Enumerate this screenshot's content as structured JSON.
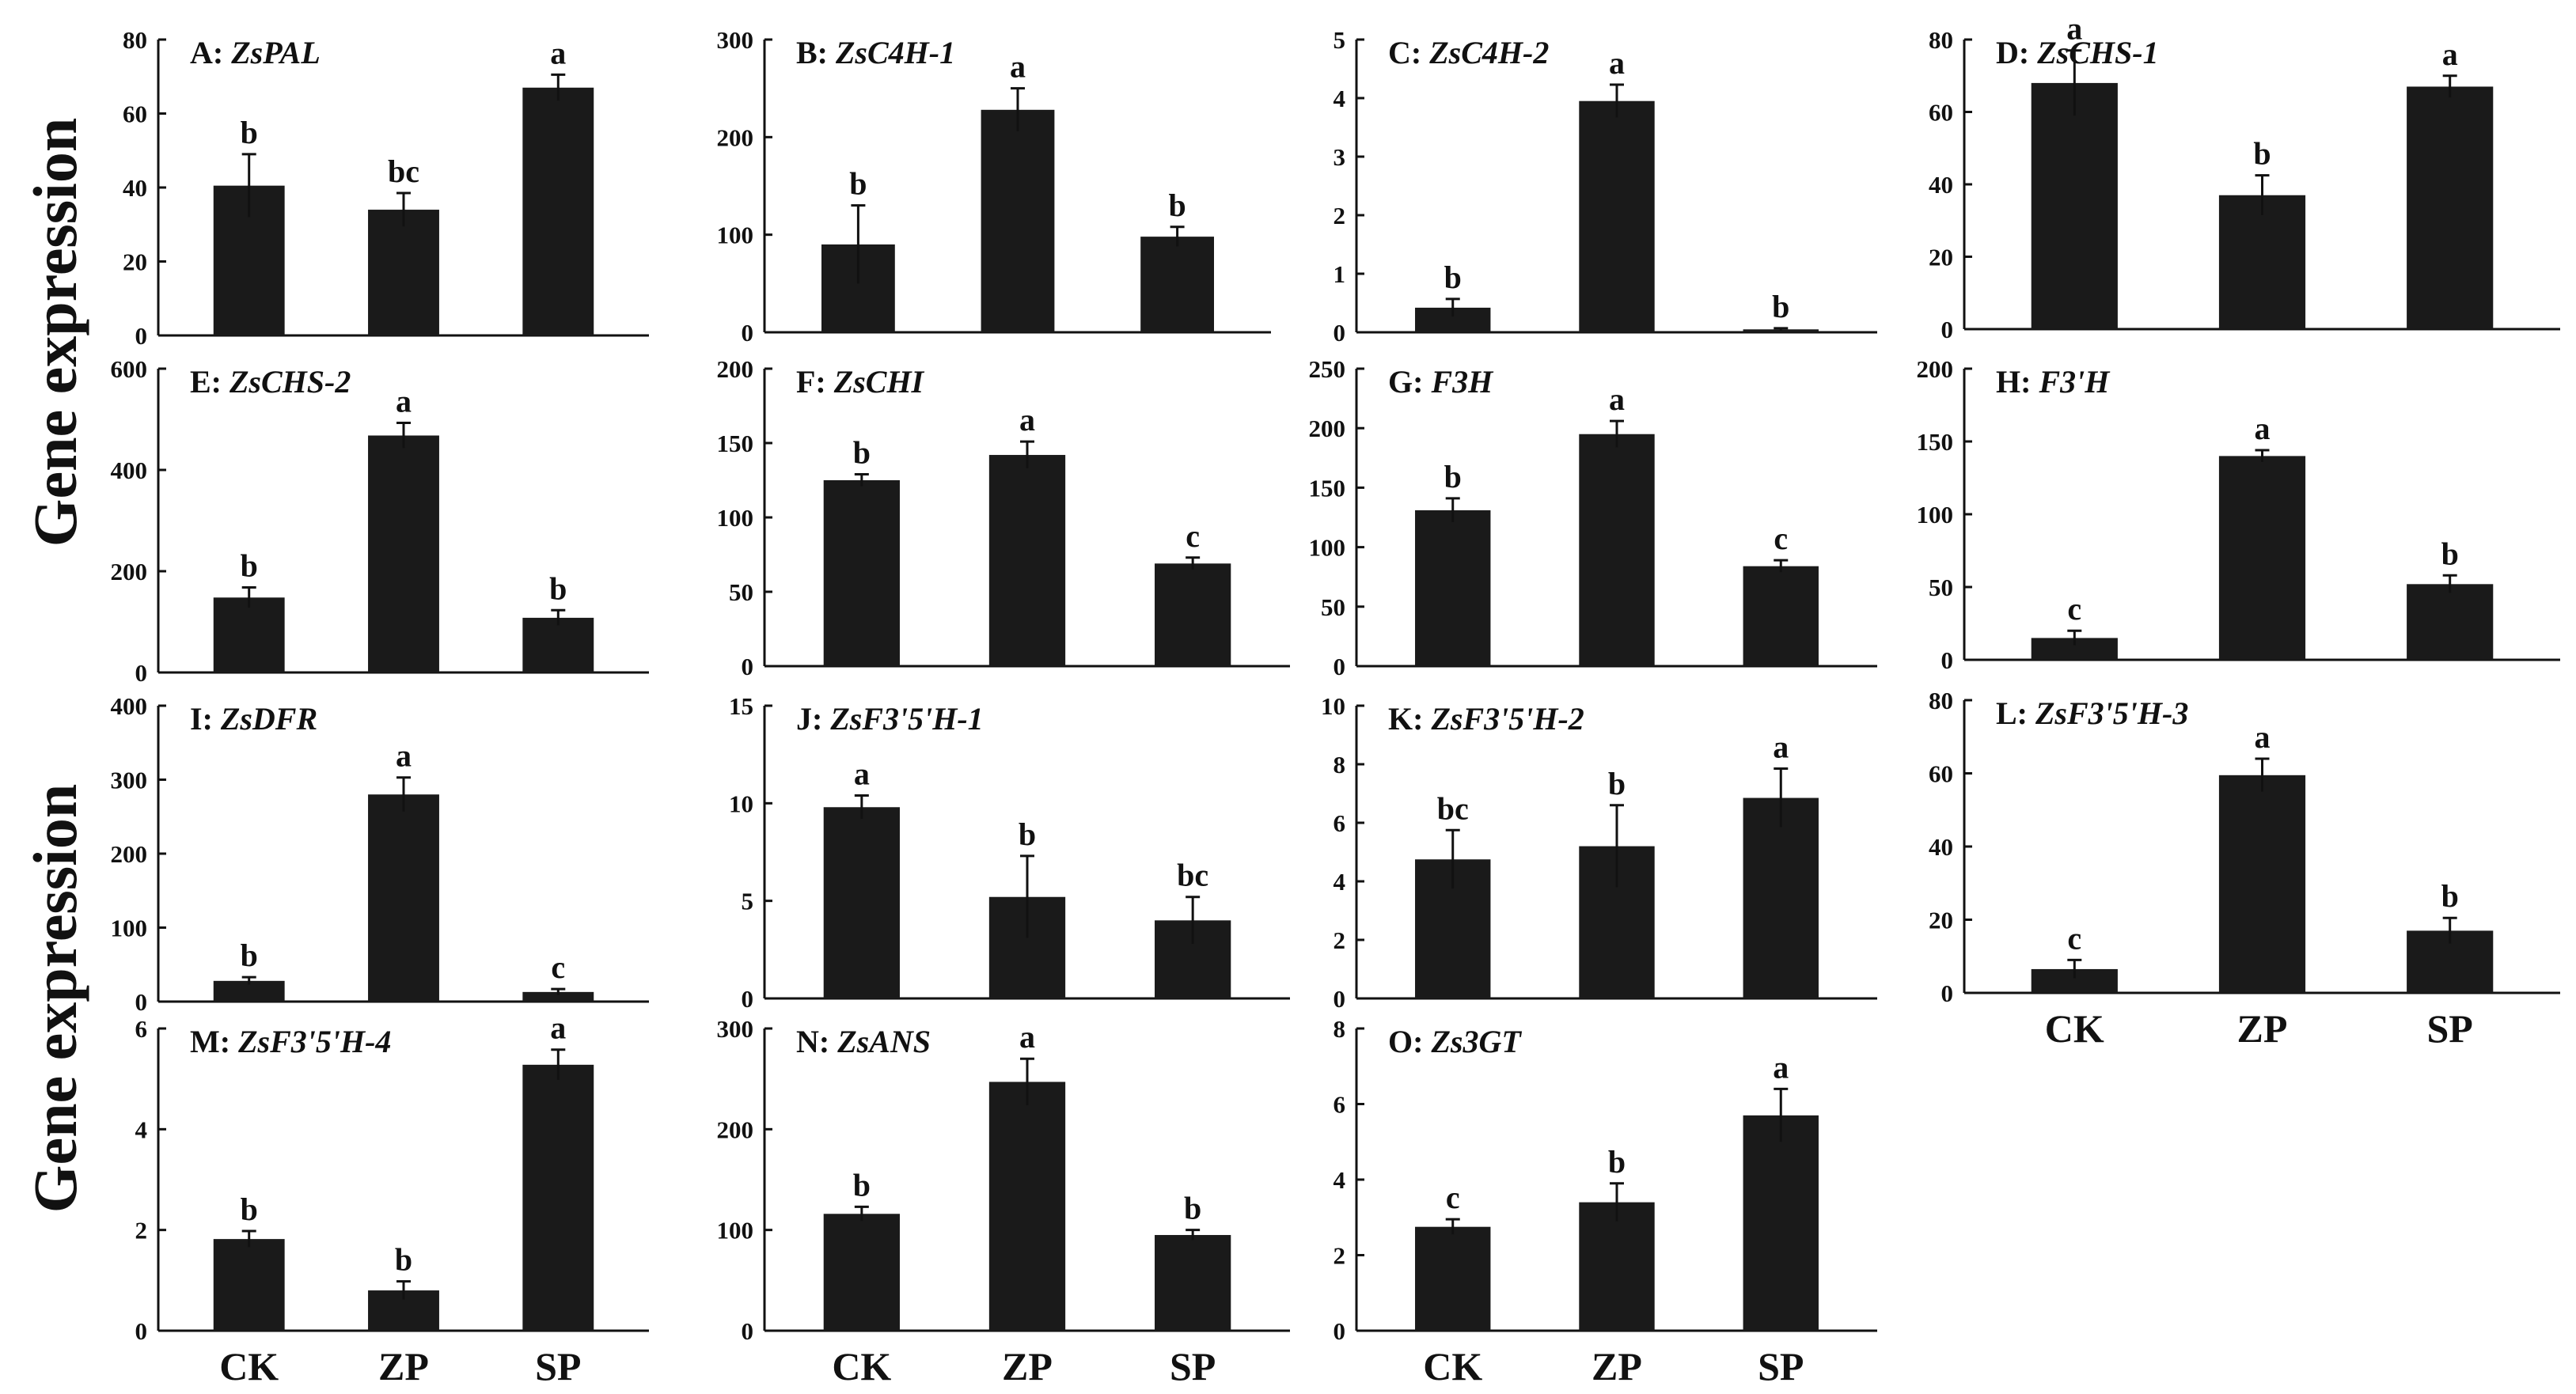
{
  "figure": {
    "ylabel_top": "Gene expression",
    "ylabel_bottom": "Gene expression"
  },
  "colors": {
    "bar": "#1a1a1a",
    "axis": "#111111",
    "background": "#ffffff"
  },
  "chart_data": [
    {
      "id": "A",
      "prefix": "A:",
      "gene": "ZsPAL",
      "type": "bar",
      "categories": [
        "CK",
        "ZP",
        "SP"
      ],
      "values": [
        40.5,
        34,
        67
      ],
      "errors": [
        8.5,
        4.5,
        3.5
      ],
      "letters": [
        "b",
        "bc",
        "a"
      ],
      "ylim": [
        0,
        80
      ],
      "yticks": [
        0,
        20,
        40,
        60,
        80
      ],
      "show_xlabels": false
    },
    {
      "id": "B",
      "prefix": "B:",
      "gene": "ZsC4H-1",
      "type": "bar",
      "categories": [
        "CK",
        "ZP",
        "SP"
      ],
      "values": [
        90,
        228,
        98
      ],
      "errors": [
        40,
        22,
        10
      ],
      "letters": [
        "b",
        "a",
        "b"
      ],
      "ylim": [
        0,
        300
      ],
      "yticks": [
        0,
        100,
        200,
        300
      ],
      "show_xlabels": false
    },
    {
      "id": "C",
      "prefix": "C:",
      "gene": "ZsC4H-2",
      "type": "bar",
      "categories": [
        "CK",
        "ZP",
        "SP"
      ],
      "values": [
        0.42,
        3.95,
        0.05
      ],
      "errors": [
        0.15,
        0.28,
        0.02
      ],
      "letters": [
        "b",
        "a",
        "b"
      ],
      "ylim": [
        0,
        5
      ],
      "yticks": [
        0,
        1,
        2,
        3,
        4,
        5
      ],
      "show_xlabels": false
    },
    {
      "id": "D",
      "prefix": "D:",
      "gene": "ZsCHS-1",
      "type": "bar",
      "categories": [
        "CK",
        "ZP",
        "SP"
      ],
      "values": [
        68,
        37,
        67
      ],
      "errors": [
        9,
        5.5,
        3
      ],
      "letters": [
        "a",
        "b",
        "a"
      ],
      "ylim": [
        0,
        80
      ],
      "yticks": [
        0,
        20,
        40,
        60,
        80
      ],
      "show_xlabels": false
    },
    {
      "id": "E",
      "prefix": "E:",
      "gene": "ZsCHS-2",
      "type": "bar",
      "categories": [
        "CK",
        "ZP",
        "SP"
      ],
      "values": [
        148,
        468,
        108
      ],
      "errors": [
        20,
        25,
        15
      ],
      "letters": [
        "b",
        "a",
        "b"
      ],
      "ylim": [
        0,
        600
      ],
      "yticks": [
        0,
        200,
        400,
        600
      ],
      "show_xlabels": false
    },
    {
      "id": "F",
      "prefix": "F:",
      "gene": "ZsCHI",
      "type": "bar",
      "categories": [
        "CK",
        "ZP",
        "SP"
      ],
      "values": [
        125,
        142,
        69
      ],
      "errors": [
        4,
        9,
        4
      ],
      "letters": [
        "b",
        "a",
        "c"
      ],
      "ylim": [
        0,
        200
      ],
      "yticks": [
        0,
        50,
        100,
        150,
        200
      ],
      "show_xlabels": false
    },
    {
      "id": "G",
      "prefix": "G:",
      "gene": "F3H",
      "type": "bar",
      "categories": [
        "CK",
        "ZP",
        "SP"
      ],
      "values": [
        131,
        195,
        84
      ],
      "errors": [
        10,
        11,
        5
      ],
      "letters": [
        "b",
        "a",
        "c"
      ],
      "ylim": [
        0,
        250
      ],
      "yticks": [
        0,
        50,
        100,
        150,
        200,
        250
      ],
      "show_xlabels": false
    },
    {
      "id": "H",
      "prefix": "H:",
      "gene": "F3'H",
      "type": "bar",
      "categories": [
        "CK",
        "ZP",
        "SP"
      ],
      "values": [
        15,
        140,
        52
      ],
      "errors": [
        5,
        4,
        6
      ],
      "letters": [
        "c",
        "a",
        "b"
      ],
      "ylim": [
        0,
        200
      ],
      "yticks": [
        0,
        50,
        100,
        150,
        200
      ],
      "show_xlabels": false
    },
    {
      "id": "I",
      "prefix": "I:",
      "gene": "ZsDFR",
      "type": "bar",
      "categories": [
        "CK",
        "ZP",
        "SP"
      ],
      "values": [
        28,
        280,
        13
      ],
      "errors": [
        5,
        23,
        4
      ],
      "letters": [
        "b",
        "a",
        "c"
      ],
      "ylim": [
        0,
        400
      ],
      "yticks": [
        0,
        100,
        200,
        300,
        400
      ],
      "show_xlabels": false
    },
    {
      "id": "J",
      "prefix": "J:",
      "gene": "ZsF3'5'H-1",
      "type": "bar",
      "categories": [
        "CK",
        "ZP",
        "SP"
      ],
      "values": [
        9.8,
        5.2,
        4.0
      ],
      "errors": [
        0.6,
        2.1,
        1.2
      ],
      "letters": [
        "a",
        "b",
        "bc"
      ],
      "ylim": [
        0,
        15
      ],
      "yticks": [
        0,
        5,
        10,
        15
      ],
      "show_xlabels": false
    },
    {
      "id": "K",
      "prefix": "K:",
      "gene": "ZsF3'5'H-2",
      "type": "bar",
      "categories": [
        "CK",
        "ZP",
        "SP"
      ],
      "values": [
        4.75,
        5.2,
        6.85
      ],
      "errors": [
        1.0,
        1.4,
        1.0
      ],
      "letters": [
        "bc",
        "b",
        "a"
      ],
      "ylim": [
        0,
        10
      ],
      "yticks": [
        0,
        2,
        4,
        6,
        8,
        10
      ],
      "show_xlabels": false
    },
    {
      "id": "L",
      "prefix": "L:",
      "gene": "ZsF3'5'H-3",
      "type": "bar",
      "categories": [
        "CK",
        "ZP",
        "SP"
      ],
      "values": [
        6.5,
        59.5,
        17
      ],
      "errors": [
        2.5,
        4.5,
        3.5
      ],
      "letters": [
        "c",
        "a",
        "b"
      ],
      "ylim": [
        0,
        80
      ],
      "yticks": [
        0,
        20,
        40,
        60,
        80
      ],
      "show_xlabels": true
    },
    {
      "id": "M",
      "prefix": "M:",
      "gene": "ZsF3'5'H-4",
      "type": "bar",
      "categories": [
        "CK",
        "ZP",
        "SP"
      ],
      "values": [
        1.82,
        0.8,
        5.28
      ],
      "errors": [
        0.16,
        0.18,
        0.3
      ],
      "letters": [
        "b",
        "b",
        "a"
      ],
      "ylim": [
        0,
        6
      ],
      "yticks": [
        0,
        2,
        4,
        6
      ],
      "show_xlabels": true
    },
    {
      "id": "N",
      "prefix": "N:",
      "gene": "ZsANS",
      "type": "bar",
      "categories": [
        "CK",
        "ZP",
        "SP"
      ],
      "values": [
        116,
        247,
        95
      ],
      "errors": [
        7,
        23,
        5
      ],
      "letters": [
        "b",
        "a",
        "b"
      ],
      "ylim": [
        0,
        300
      ],
      "yticks": [
        0,
        100,
        200,
        300
      ],
      "show_xlabels": true
    },
    {
      "id": "O",
      "prefix": "O:",
      "gene": "Zs3GT",
      "type": "bar",
      "categories": [
        "CK",
        "ZP",
        "SP"
      ],
      "values": [
        2.75,
        3.4,
        5.7
      ],
      "errors": [
        0.2,
        0.5,
        0.7
      ],
      "letters": [
        "c",
        "b",
        "a"
      ],
      "ylim": [
        0,
        8
      ],
      "yticks": [
        0,
        2,
        4,
        6,
        8
      ],
      "show_xlabels": true
    }
  ]
}
